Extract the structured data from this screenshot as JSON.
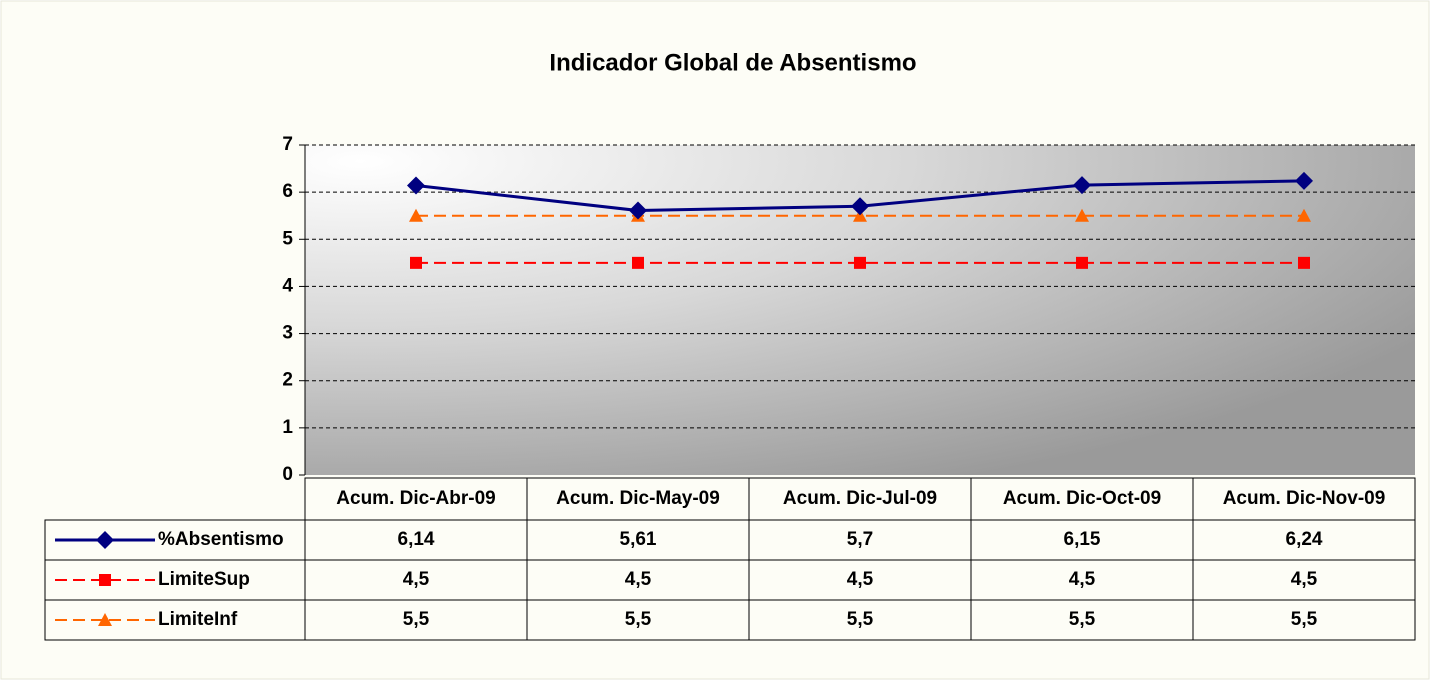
{
  "chart_data": {
    "type": "line",
    "title": "Indicador Global de Absentismo",
    "categories": [
      "Acum. Dic-Abr-09",
      "Acum. Dic-May-09",
      "Acum. Dic-Jul-09",
      "Acum. Dic-Oct-09",
      "Acum. Dic-Nov-09"
    ],
    "series": [
      {
        "name": "%Absentismo",
        "color": "#000080",
        "marker": "diamond",
        "dashed": false,
        "values": [
          6.14,
          5.61,
          5.7,
          6.15,
          6.24
        ],
        "value_labels": [
          "6,14",
          "5,61",
          "5,7",
          "6,15",
          "6,24"
        ]
      },
      {
        "name": "LimiteSup",
        "color": "#ff0000",
        "marker": "square",
        "dashed": true,
        "values": [
          4.5,
          4.5,
          4.5,
          4.5,
          4.5
        ],
        "value_labels": [
          "4,5",
          "4,5",
          "4,5",
          "4,5",
          "4,5"
        ]
      },
      {
        "name": "LimiteInf",
        "color": "#ff6600",
        "marker": "triangle",
        "dashed": true,
        "values": [
          5.5,
          5.5,
          5.5,
          5.5,
          5.5
        ],
        "value_labels": [
          "5,5",
          "5,5",
          "5,5",
          "5,5",
          "5,5"
        ]
      }
    ],
    "ylim": [
      0,
      7
    ],
    "yticks": [
      0,
      1,
      2,
      3,
      4,
      5,
      6,
      7
    ],
    "grid": true
  }
}
